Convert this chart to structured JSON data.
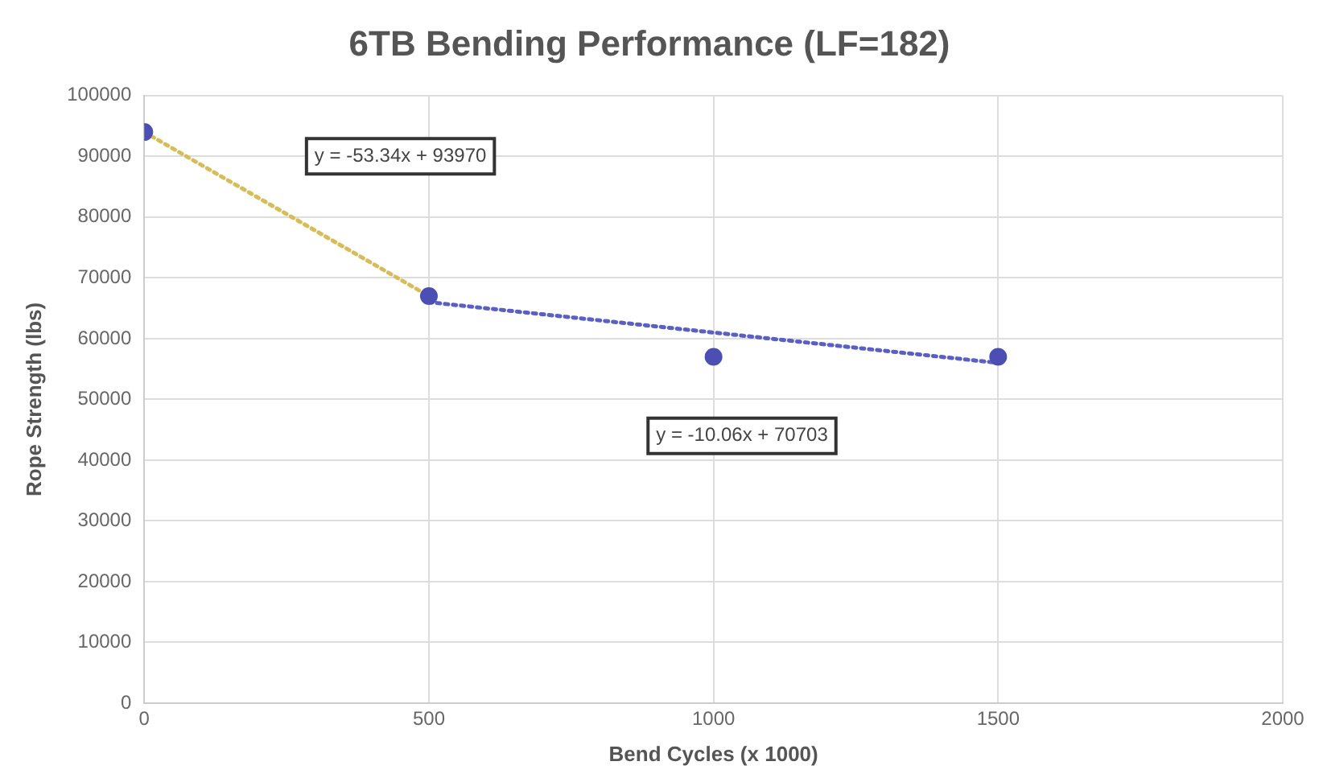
{
  "chart_data": {
    "type": "scatter",
    "title": "6TB Bending Performance (LF=182)",
    "xlabel": "Bend Cycles (x 1000)",
    "ylabel": "Rope Strength (lbs)",
    "x": [
      0,
      500,
      1000,
      1500
    ],
    "series": [
      {
        "color": "#4b4fb3",
        "values": [
          94000,
          67000,
          57000,
          57000
        ],
        "marker": "circle"
      },
      {
        "type": "line",
        "color": "#d6bd5a",
        "x": [
          0,
          500
        ],
        "values": [
          94000,
          67000
        ],
        "line_style": "dotted",
        "marker": "none"
      },
      {
        "type": "line",
        "color": "#5a5fc4",
        "x": [
          500,
          1500
        ],
        "values": [
          66000,
          56000
        ],
        "line_style": "dotted",
        "marker": "none"
      }
    ],
    "xlim": [
      0,
      2000
    ],
    "xticks": [
      0,
      500,
      1000,
      1500,
      2000
    ],
    "ylim": [
      0,
      100000
    ],
    "yticks": [
      0,
      10000,
      20000,
      30000,
      40000,
      50000,
      60000,
      70000,
      80000,
      90000,
      100000
    ],
    "grid": true,
    "legend": false,
    "annotations": [
      "y = -53.34x + 93970",
      "y = -10.06x + 70703"
    ]
  }
}
